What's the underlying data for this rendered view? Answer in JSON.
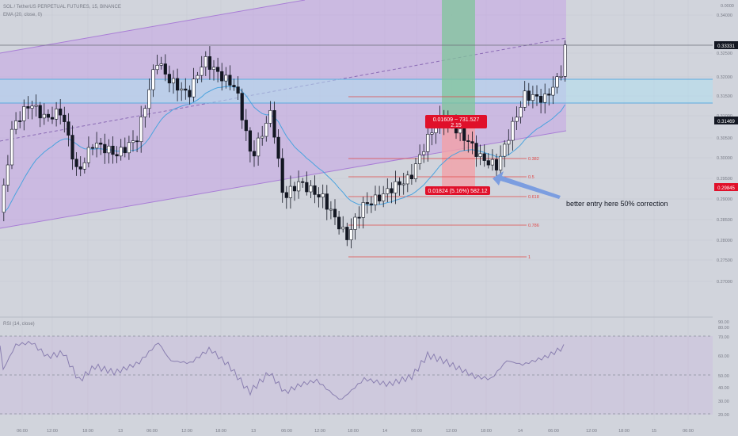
{
  "header": {
    "symbol_line": "SOL / TetherUS PERPETUAL FUTURES, 15, BINANCE",
    "ema_line": "EMA (20, close, 0)",
    "price_top": "0.0000"
  },
  "annotation": {
    "text": "better entry here 50% correction"
  },
  "measure_top": {
    "line1": "0.01609 ~ 731.527",
    "line2": "2.15"
  },
  "measure_bottom": {
    "text": "0.01824 (5.16%) 582.12"
  },
  "price_badges": {
    "last": "0.33331",
    "ema": "0.31469",
    "low": "0.29845"
  },
  "rsi": {
    "label": "RSI (14, close)",
    "levels": [
      "70.00",
      "60.00",
      "50.00",
      "40.00",
      "30.00"
    ],
    "top_levels": [
      "90.00",
      "80.00"
    ],
    "bottom_level": "20.00"
  },
  "chart_data": {
    "type": "candlestick",
    "y_axis_ticks": [
      "0.34000",
      "0.32500",
      "0.32000",
      "0.31500",
      "0.31000",
      "0.30500",
      "0.30000",
      "0.29500",
      "0.29000",
      "0.28500",
      "0.28000",
      "0.27500",
      "0.27000"
    ],
    "x_axis_ticks": [
      "06:00",
      "12:00",
      "18:00",
      "13",
      "06:00",
      "12:00",
      "18:00",
      "13",
      "06:00",
      "12:00",
      "18:00",
      "14",
      "06:00",
      "12:00",
      "18:00",
      "14",
      "06:00",
      "12:00",
      "18:00",
      "15",
      "06:00"
    ],
    "fib_levels": [
      {
        "level": "0.382"
      },
      {
        "level": "0.5"
      },
      {
        "level": "0.618"
      },
      {
        "level": "0.786"
      },
      {
        "level": "1"
      }
    ],
    "colors": {
      "channel": "#c49be6",
      "zone": "#b0dff0",
      "ema": "#4aa3df",
      "fib": "#e04848",
      "long_profit": "#7fc49a",
      "long_loss": "#f2a0a8",
      "badge_red": "#e0102a",
      "badge_dark": "#131722",
      "arrow": "#7b9de0"
    }
  }
}
